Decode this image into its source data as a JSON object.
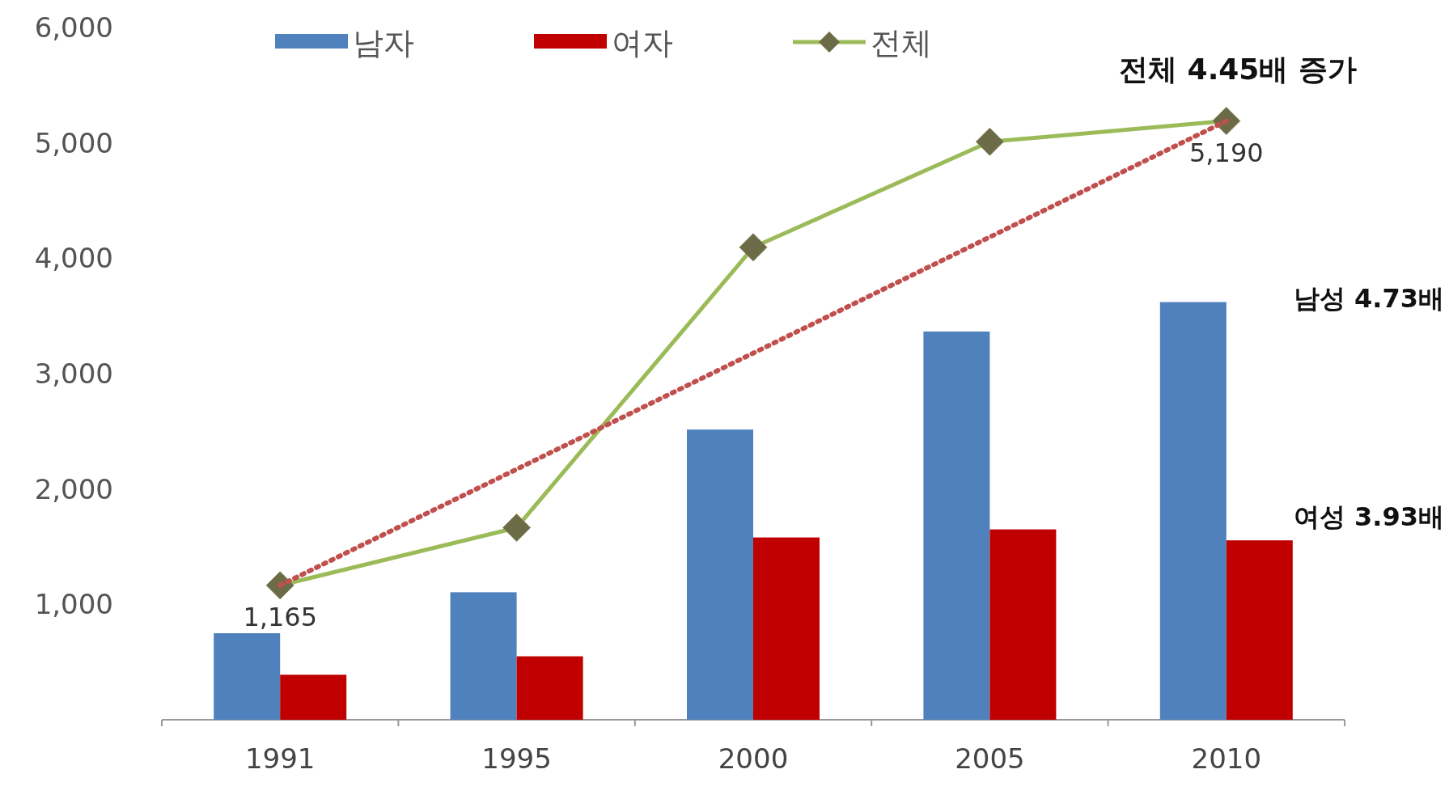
{
  "chart_data": {
    "type": "bar",
    "categories": [
      "1991",
      "1995",
      "2000",
      "2005",
      "2010"
    ],
    "series": [
      {
        "name": "남자",
        "color": "#4f81bd",
        "values": [
          750,
          1105,
          2515,
          3365,
          3620
        ]
      },
      {
        "name": "여자",
        "color": "#c00000",
        "values": [
          390,
          550,
          1580,
          1650,
          1555
        ]
      },
      {
        "name": "전체",
        "type": "line",
        "color": "#9bbb59",
        "marker": "diamond",
        "values": [
          1165,
          1665,
          4095,
          5010,
          5190
        ],
        "value_labels": [
          "1,165",
          null,
          null,
          null,
          "5,190"
        ]
      },
      {
        "type": "line",
        "color": "#c0504d",
        "line_style": "dotted",
        "values": [
          1165,
          null,
          null,
          null,
          5190
        ]
      }
    ],
    "ylim": [
      0,
      6000
    ],
    "yticks": [
      {
        "value": 1000,
        "label": "1,000"
      },
      {
        "value": 2000,
        "label": "2,000"
      },
      {
        "value": 3000,
        "label": "3,000"
      },
      {
        "value": 4000,
        "label": "4,000"
      },
      {
        "value": 5000,
        "label": "5,000"
      },
      {
        "value": 6000,
        "label": "6,000"
      }
    ],
    "annotations": [
      "전체 4.45배 증가",
      "남성 4.73배",
      "여성 3.93배"
    ],
    "legend": "top left",
    "grid": false
  }
}
